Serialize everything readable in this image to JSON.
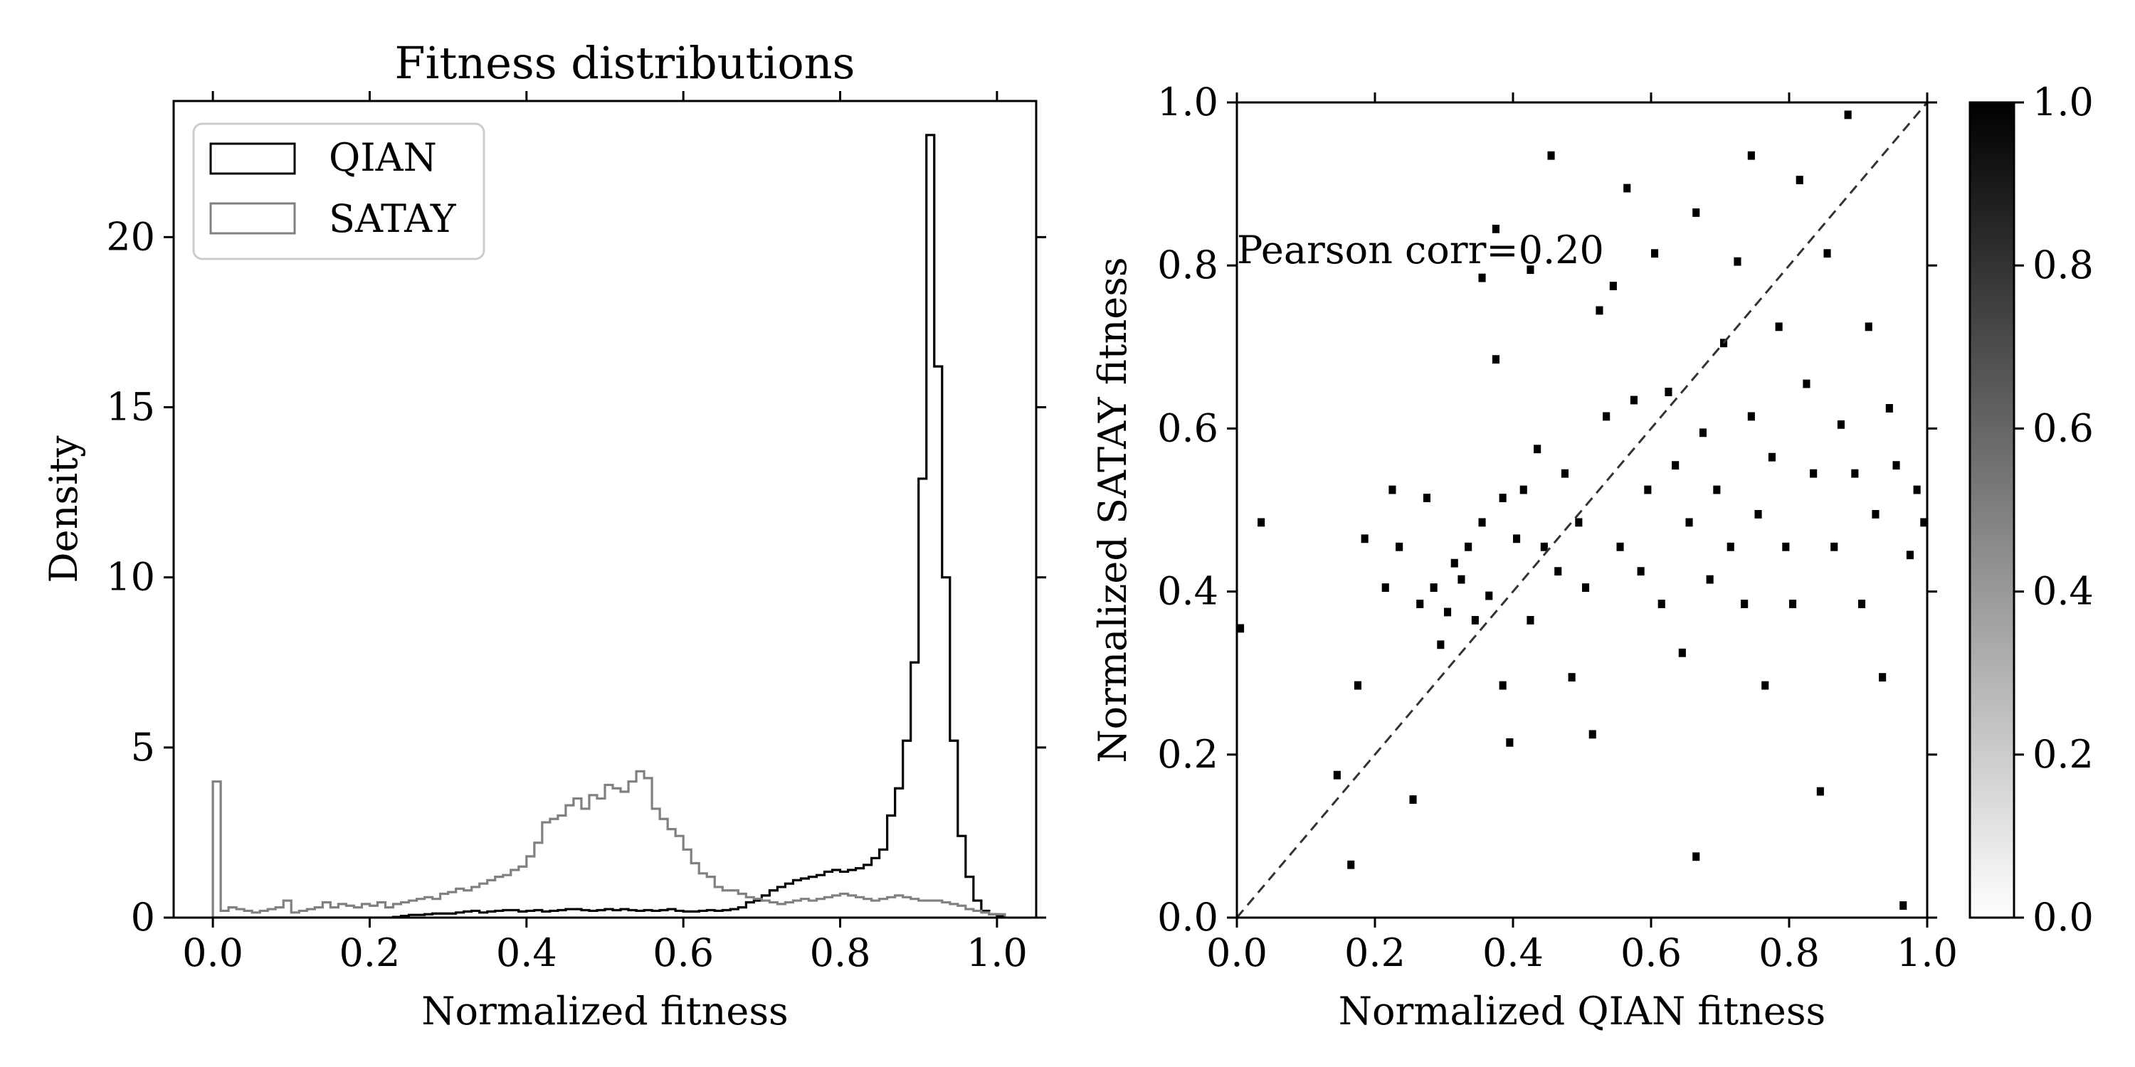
{
  "chart_data": [
    {
      "type": "histogram",
      "title": "Fitness distributions",
      "xlabel": "Normalized fitness",
      "ylabel": "Density",
      "xlim": [
        -0.05,
        1.05
      ],
      "ylim": [
        0,
        24
      ],
      "x_ticks": [
        0.0,
        0.2,
        0.4,
        0.6,
        0.8,
        1.0
      ],
      "x_tick_labels": [
        "0.0",
        "0.2",
        "0.4",
        "0.6",
        "0.8",
        "1.0"
      ],
      "y_ticks": [
        0,
        5,
        10,
        15,
        20
      ],
      "y_tick_labels": [
        "0",
        "5",
        "10",
        "15",
        "20"
      ],
      "legend": "upper-left",
      "bin_edges_start": 0.0,
      "bin_width": 0.01,
      "series": [
        {
          "name": "QIAN",
          "color": "#000000",
          "values": [
            0.0,
            0.0,
            0.0,
            0.0,
            0.0,
            0.0,
            0.0,
            0.0,
            0.0,
            0.0,
            0.0,
            0.0,
            0.0,
            0.0,
            0.0,
            0.0,
            0.0,
            0.0,
            0.0,
            0.0,
            0.0,
            0.0,
            0.0,
            0.02,
            0.05,
            0.08,
            0.08,
            0.1,
            0.12,
            0.12,
            0.12,
            0.15,
            0.18,
            0.2,
            0.15,
            0.18,
            0.2,
            0.22,
            0.22,
            0.18,
            0.2,
            0.22,
            0.18,
            0.2,
            0.22,
            0.25,
            0.25,
            0.22,
            0.2,
            0.22,
            0.25,
            0.22,
            0.25,
            0.22,
            0.2,
            0.22,
            0.2,
            0.22,
            0.25,
            0.2,
            0.18,
            0.18,
            0.2,
            0.22,
            0.2,
            0.22,
            0.25,
            0.3,
            0.45,
            0.5,
            0.65,
            0.8,
            0.9,
            1.0,
            1.1,
            1.15,
            1.2,
            1.25,
            1.35,
            1.4,
            1.35,
            1.4,
            1.45,
            1.55,
            1.75,
            2.0,
            3.0,
            3.8,
            5.2,
            7.5,
            12.9,
            23.0,
            16.2,
            10.0,
            5.2,
            2.4,
            1.2,
            0.5,
            0.2,
            0.1,
            0.05
          ]
        },
        {
          "name": "SATAY",
          "color": "#808080",
          "values": [
            4.0,
            0.2,
            0.3,
            0.25,
            0.2,
            0.15,
            0.2,
            0.25,
            0.3,
            0.5,
            0.15,
            0.2,
            0.25,
            0.3,
            0.45,
            0.3,
            0.4,
            0.35,
            0.3,
            0.4,
            0.35,
            0.45,
            0.3,
            0.4,
            0.45,
            0.5,
            0.55,
            0.6,
            0.55,
            0.7,
            0.75,
            0.85,
            0.8,
            0.9,
            1.0,
            1.1,
            1.2,
            1.25,
            1.4,
            1.5,
            1.8,
            2.2,
            2.8,
            2.9,
            3.0,
            3.3,
            3.5,
            3.2,
            3.6,
            3.5,
            3.9,
            3.8,
            3.7,
            4.0,
            4.3,
            4.1,
            3.2,
            2.9,
            2.6,
            2.4,
            2.0,
            1.6,
            1.3,
            1.2,
            0.9,
            0.8,
            0.8,
            0.7,
            0.6,
            0.55,
            0.5,
            0.45,
            0.4,
            0.45,
            0.5,
            0.55,
            0.5,
            0.55,
            0.6,
            0.65,
            0.7,
            0.65,
            0.6,
            0.55,
            0.5,
            0.55,
            0.6,
            0.65,
            0.6,
            0.55,
            0.5,
            0.5,
            0.5,
            0.45,
            0.4,
            0.35,
            0.25,
            0.2,
            0.15,
            0.1,
            0.1
          ]
        }
      ]
    },
    {
      "type": "heatmap",
      "xlabel": "Normalized QIAN fitness",
      "ylabel": "Normalized SATAY fitness",
      "xlim": [
        0,
        1
      ],
      "ylim": [
        0,
        1
      ],
      "x_ticks": [
        0.0,
        0.2,
        0.4,
        0.6,
        0.8,
        1.0
      ],
      "x_tick_labels": [
        "0.0",
        "0.2",
        "0.4",
        "0.6",
        "0.8",
        "1.0"
      ],
      "y_ticks": [
        0.0,
        0.2,
        0.4,
        0.6,
        0.8,
        1.0
      ],
      "y_tick_labels": [
        "0.0",
        "0.2",
        "0.4",
        "0.6",
        "0.8",
        "1.0"
      ],
      "annotation": "Pearson corr=0.20",
      "reference_line": "y = x (dashed)",
      "colormap": "white-to-black",
      "bins": 100,
      "colorbar": {
        "ticks": [
          0.0,
          0.2,
          0.4,
          0.6,
          0.8,
          1.0
        ],
        "tick_labels": [
          "0.0",
          "0.2",
          "0.4",
          "0.6",
          "0.8",
          "1.0"
        ],
        "range": [
          0,
          1
        ]
      },
      "points": [
        [
          0.005,
          0.355
        ],
        [
          0.035,
          0.485
        ],
        [
          0.145,
          0.175
        ],
        [
          0.165,
          0.065
        ],
        [
          0.175,
          0.285
        ],
        [
          0.185,
          0.465
        ],
        [
          0.215,
          0.405
        ],
        [
          0.225,
          0.525
        ],
        [
          0.235,
          0.455
        ],
        [
          0.255,
          0.145
        ],
        [
          0.265,
          0.385
        ],
        [
          0.275,
          0.515
        ],
        [
          0.285,
          0.405
        ],
        [
          0.295,
          0.335
        ],
        [
          0.305,
          0.375
        ],
        [
          0.315,
          0.435
        ],
        [
          0.325,
          0.415
        ],
        [
          0.335,
          0.455
        ],
        [
          0.345,
          0.365
        ],
        [
          0.355,
          0.785
        ],
        [
          0.355,
          0.485
        ],
        [
          0.365,
          0.395
        ],
        [
          0.375,
          0.845
        ],
        [
          0.375,
          0.685
        ],
        [
          0.385,
          0.515
        ],
        [
          0.385,
          0.285
        ],
        [
          0.395,
          0.215
        ],
        [
          0.405,
          0.465
        ],
        [
          0.415,
          0.525
        ],
        [
          0.425,
          0.365
        ],
        [
          0.425,
          0.795
        ],
        [
          0.435,
          0.575
        ],
        [
          0.445,
          0.455
        ],
        [
          0.455,
          0.935
        ],
        [
          0.465,
          0.425
        ],
        [
          0.475,
          0.545
        ],
        [
          0.485,
          0.295
        ],
        [
          0.495,
          0.485
        ],
        [
          0.505,
          0.405
        ],
        [
          0.515,
          0.225
        ],
        [
          0.525,
          0.745
        ],
        [
          0.535,
          0.615
        ],
        [
          0.545,
          0.775
        ],
        [
          0.555,
          0.455
        ],
        [
          0.565,
          0.895
        ],
        [
          0.575,
          0.635
        ],
        [
          0.585,
          0.425
        ],
        [
          0.595,
          0.525
        ],
        [
          0.605,
          0.815
        ],
        [
          0.615,
          0.385
        ],
        [
          0.625,
          0.645
        ],
        [
          0.635,
          0.555
        ],
        [
          0.645,
          0.325
        ],
        [
          0.655,
          0.485
        ],
        [
          0.665,
          0.865
        ],
        [
          0.665,
          0.075
        ],
        [
          0.675,
          0.595
        ],
        [
          0.685,
          0.415
        ],
        [
          0.695,
          0.525
        ],
        [
          0.705,
          0.705
        ],
        [
          0.715,
          0.455
        ],
        [
          0.725,
          0.805
        ],
        [
          0.735,
          0.385
        ],
        [
          0.745,
          0.615
        ],
        [
          0.745,
          0.935
        ],
        [
          0.755,
          0.495
        ],
        [
          0.765,
          0.285
        ],
        [
          0.775,
          0.565
        ],
        [
          0.785,
          0.725
        ],
        [
          0.795,
          0.455
        ],
        [
          0.805,
          0.385
        ],
        [
          0.815,
          0.905
        ],
        [
          0.825,
          0.655
        ],
        [
          0.835,
          0.545
        ],
        [
          0.845,
          0.155
        ],
        [
          0.855,
          0.815
        ],
        [
          0.865,
          0.455
        ],
        [
          0.875,
          0.605
        ],
        [
          0.885,
          0.985
        ],
        [
          0.895,
          0.545
        ],
        [
          0.905,
          0.385
        ],
        [
          0.915,
          0.725
        ],
        [
          0.925,
          0.495
        ],
        [
          0.935,
          0.295
        ],
        [
          0.945,
          0.625
        ],
        [
          0.955,
          0.555
        ],
        [
          0.965,
          0.015
        ],
        [
          0.975,
          0.445
        ],
        [
          0.985,
          0.525
        ],
        [
          0.995,
          0.485
        ]
      ]
    }
  ]
}
